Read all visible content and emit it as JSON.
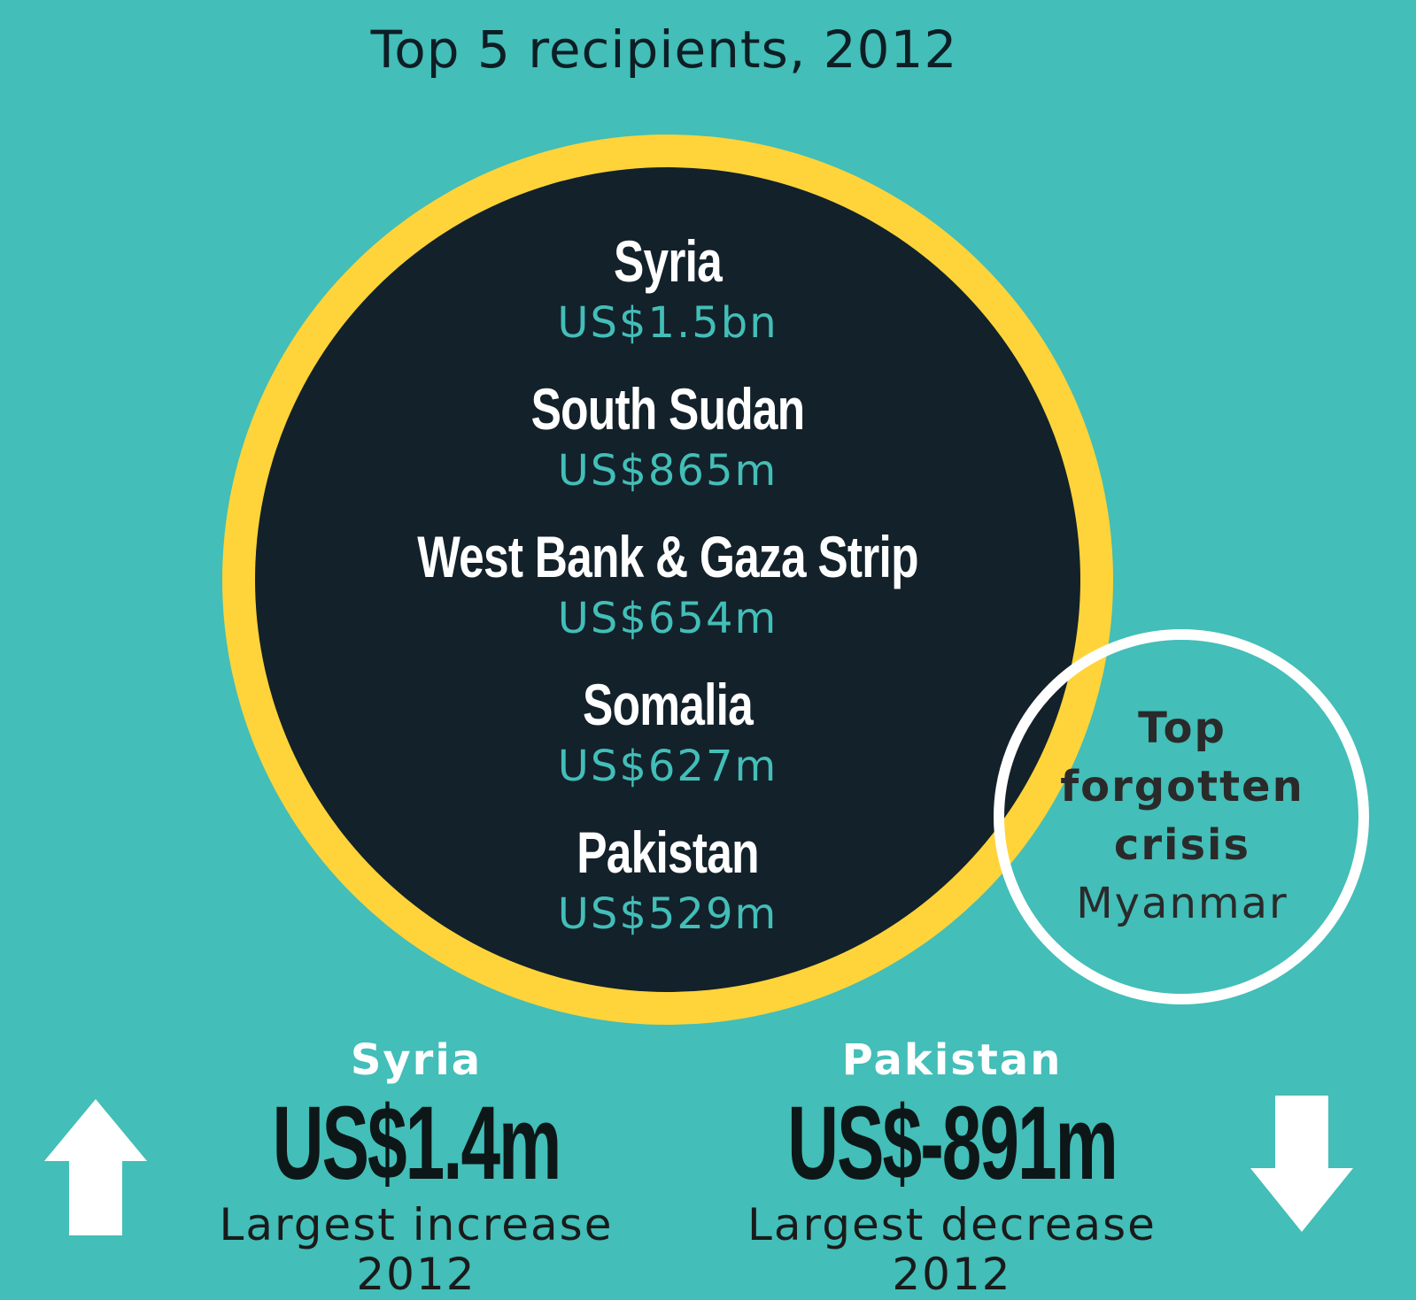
{
  "title": "Top 5 recipients, 2012",
  "recipients": [
    {
      "name": "Syria",
      "amount": "US$1.5bn"
    },
    {
      "name": "South Sudan",
      "amount": "US$865m"
    },
    {
      "name": "West Bank & Gaza Strip",
      "amount": "US$654m"
    },
    {
      "name": "Somalia",
      "amount": "US$627m"
    },
    {
      "name": "Pakistan",
      "amount": "US$529m"
    }
  ],
  "forgotten": {
    "line1": "Top",
    "line2": "forgotten",
    "line3": "crisis",
    "country": "Myanmar"
  },
  "increase": {
    "country": "Syria",
    "value": "US$1.4m",
    "label": "Largest increase 2012"
  },
  "decrease": {
    "country": "Pakistan",
    "value": "US$-891m",
    "label": "Largest decrease 2012"
  },
  "colors": {
    "background": "#43beb8",
    "ring": "#ffd43a",
    "circle": "#13212a",
    "amount": "#43beb8",
    "arrow": "#ffffff"
  },
  "icons": {
    "increase": "arrow-up-icon",
    "decrease": "arrow-down-icon"
  }
}
